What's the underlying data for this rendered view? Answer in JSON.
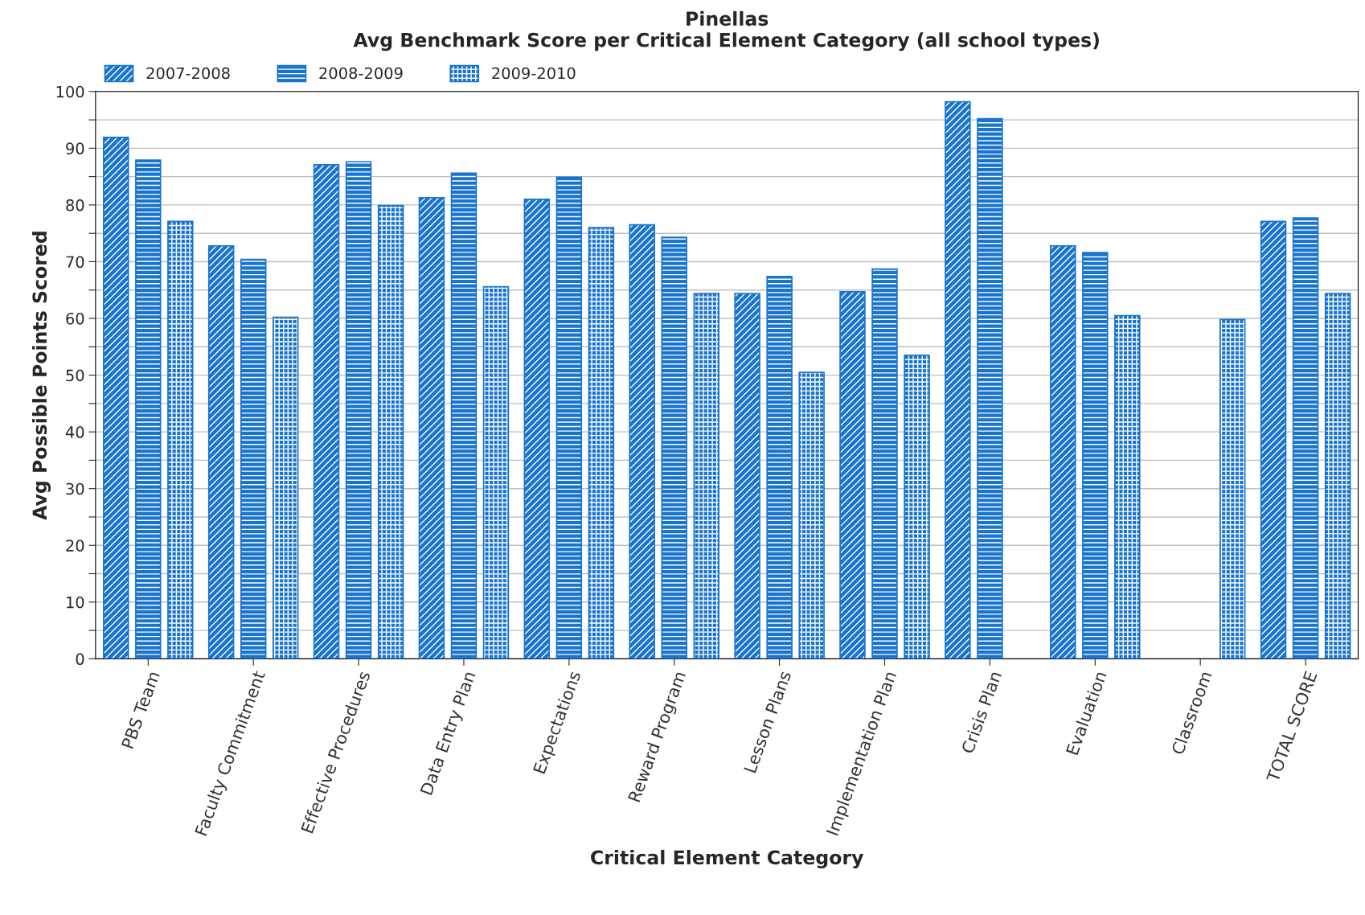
{
  "chart_data": {
    "type": "bar",
    "title": "Pinellas\nAvg Benchmark Score per Critical Element Category (all school types)",
    "xlabel": "Critical Element Category",
    "ylabel": "Avg Possible Points Scored",
    "categories": [
      "PBS Team",
      "Faculty Commitment",
      "Effective Procedures",
      "Data Entry Plan",
      "Expectations",
      "Reward Program",
      "Lesson Plans",
      "Implementation Plan",
      "Crisis Plan",
      "Evaluation",
      "Classroom",
      "TOTAL SCORE"
    ],
    "series": [
      {
        "name": "2007-2008",
        "color": "#1874cd",
        "values": [
          91.9,
          72.8,
          87.1,
          81.3,
          81.0,
          76.5,
          64.4,
          64.7,
          98.2,
          72.8,
          null,
          77.1
        ]
      },
      {
        "name": "2008-2009",
        "color": "#1874cd",
        "values": [
          87.9,
          70.4,
          87.6,
          85.6,
          84.9,
          74.3,
          67.4,
          68.7,
          95.2,
          71.6,
          null,
          77.7
        ]
      },
      {
        "name": "2009-2010",
        "color": "#1874cd",
        "values": [
          77.1,
          60.2,
          79.9,
          65.6,
          76.0,
          64.4,
          50.5,
          53.5,
          null,
          60.5,
          59.8,
          64.4
        ]
      }
    ],
    "ylim": [
      0,
      100
    ],
    "yticks": [
      0,
      {
        "value": 5,
        "label": null
      },
      10,
      {
        "value": 15,
        "label": null
      },
      20,
      {
        "value": 25,
        "label": null
      },
      30,
      {
        "value": 35,
        "label": null
      },
      40,
      {
        "value": 45,
        "label": null
      },
      50,
      {
        "value": 55,
        "label": null
      },
      60,
      {
        "value": 65,
        "label": null
      },
      70,
      {
        "value": 75,
        "label": null
      },
      80,
      {
        "value": 85,
        "label": null
      },
      90,
      {
        "value": 95,
        "label": null
      },
      100
    ],
    "grid": "y",
    "legend": "top left"
  }
}
